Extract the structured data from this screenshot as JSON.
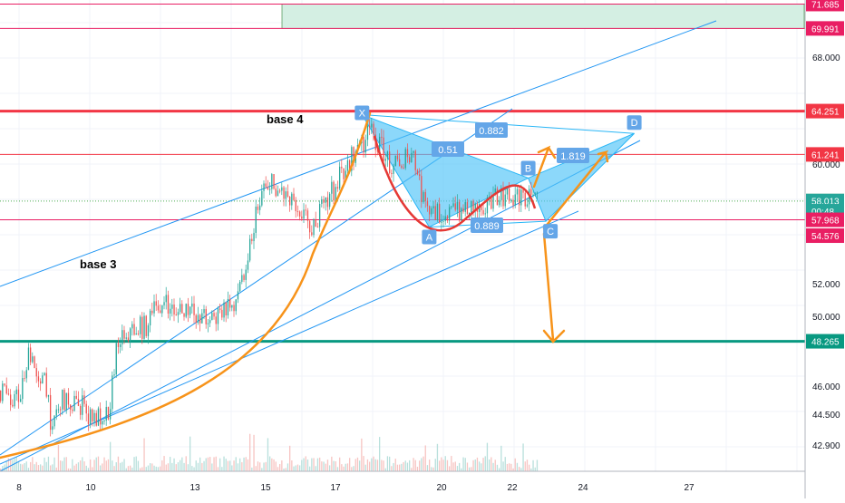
{
  "chart_data": {
    "type": "candlestick",
    "title": "",
    "xlabel": "",
    "ylabel": "",
    "x_tick_labels": [
      "8",
      "10",
      "13",
      "15",
      "17",
      "20",
      "22",
      "24",
      "27"
    ],
    "y_tick_labels": [
      "68.000",
      "60.000",
      "52.000",
      "50.000",
      "46.000",
      "44.500",
      "42.900"
    ],
    "ylim": [
      41.5,
      72.2
    ],
    "grid": true,
    "price_levels": [
      {
        "value": "71.685",
        "price": 71.685,
        "color": "#e91e63",
        "style": "line"
      },
      {
        "value": "69.991",
        "price": 69.991,
        "color": "#e91e63",
        "style": "line"
      },
      {
        "value": "64.251",
        "price": 64.251,
        "color": "#f23645",
        "style": "thick"
      },
      {
        "value": "61.241",
        "price": 61.241,
        "color": "#f23645",
        "style": "line"
      },
      {
        "value": "57.998",
        "price": 57.998,
        "color": "#f7931a",
        "style": "dotted"
      },
      {
        "value": "58.013",
        "price": 58.013,
        "color": "#26a69a",
        "style": "none"
      },
      {
        "value": "00:48",
        "price": 57.3,
        "color": "#26a69a",
        "style": "none"
      },
      {
        "value": "57.968",
        "price": 56.7,
        "color": "#e91e63",
        "style": "line"
      },
      {
        "value": "54.576",
        "price": 55.6,
        "color": "#e91e63",
        "style": "none"
      },
      {
        "value": "48.265",
        "price": 48.265,
        "color": "#089981",
        "style": "thick"
      }
    ],
    "annotations": [
      "base 4",
      "base 3"
    ],
    "pattern_points": [
      {
        "label": "X",
        "day": 17.7,
        "price": 64.0
      },
      {
        "label": "A",
        "day": 19.6,
        "price": 56.2
      },
      {
        "label": "B",
        "day": 22.4,
        "price": 59.6
      },
      {
        "label": "C",
        "day": 22.9,
        "price": 56.6
      },
      {
        "label": "D",
        "day": 25.4,
        "price": 62.7
      }
    ],
    "pattern_ratios": [
      "0.882",
      "0.51",
      "1.819",
      "0.889"
    ],
    "colors": {
      "pattern_fill": "#4fc3f7",
      "pattern_label_bg": "#64a6e8",
      "trend_orange": "#f7931a",
      "arc_red": "#e53935",
      "channel_blue": "#2196f3",
      "zone_fill": "#d4efe3",
      "candle_up": "#26a69a",
      "candle_down": "#ef5350"
    }
  }
}
